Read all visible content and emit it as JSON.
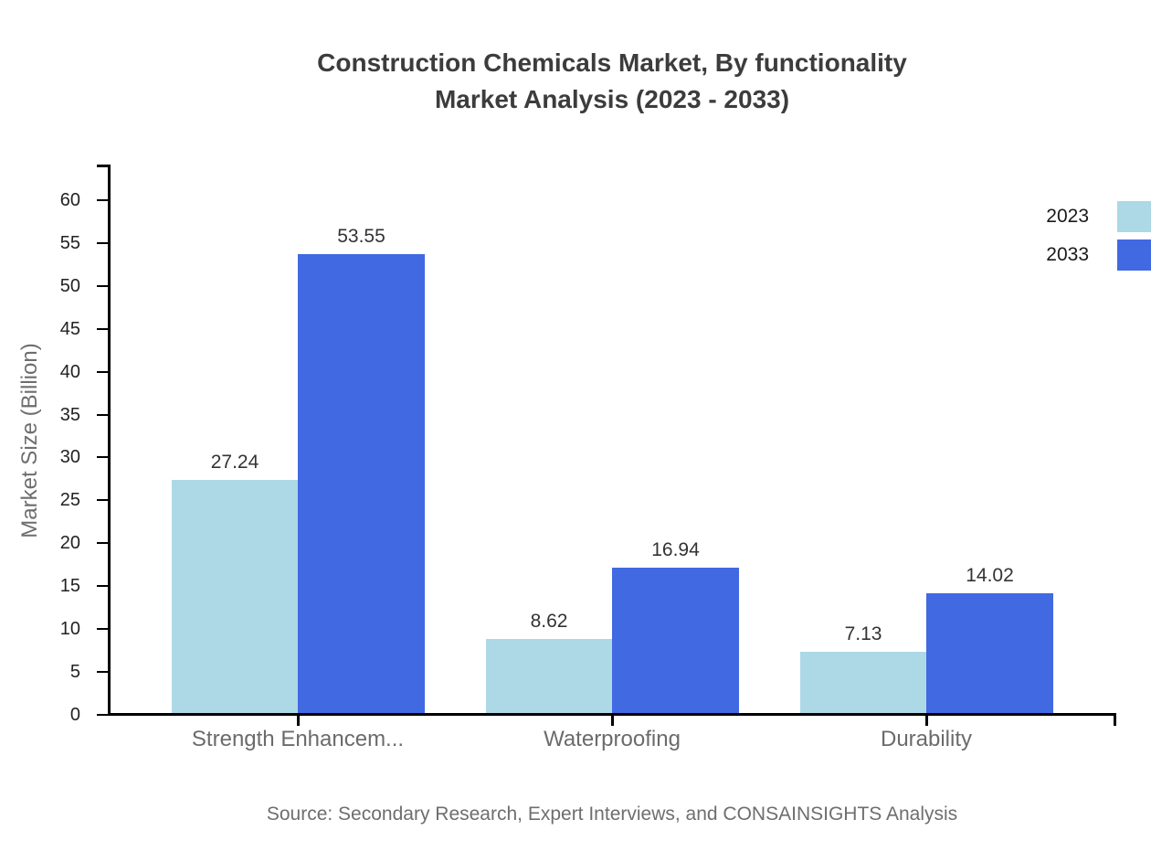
{
  "page": {
    "title_line1": "Construction Chemicals Market, By functionality",
    "title_line2": "Market Analysis (2023 - 2033)",
    "source": "Source: Secondary Research, Expert Interviews, and CONSAINSIGHTS Analysis"
  },
  "colors": {
    "series_2023": "#ADD8E6",
    "series_2033": "#4169E1",
    "axis": "#000000",
    "title_text": "#3C3C3C",
    "muted_text": "#6E6E6E",
    "value_text": "#333333"
  },
  "chart_data": {
    "type": "bar",
    "title": "Construction Chemicals Market, By functionality Market Analysis (2023 - 2033)",
    "categories": [
      "Strength Enhancem...",
      "Waterproofing",
      "Durability"
    ],
    "series": [
      {
        "name": "2023",
        "color": "#ADD8E6",
        "values": [
          27.24,
          8.62,
          7.13
        ]
      },
      {
        "name": "2033",
        "color": "#4169E1",
        "values": [
          53.55,
          16.94,
          14.02
        ]
      }
    ],
    "xlabel": "",
    "ylabel": "Market Size (Billion)",
    "ylim": [
      0,
      64
    ],
    "yticks": [
      0,
      5,
      10,
      15,
      20,
      25,
      30,
      35,
      40,
      45,
      50,
      55,
      60
    ],
    "grid": false,
    "legend_position": "top-right",
    "value_labels": true,
    "value_label_decimals": 2
  }
}
